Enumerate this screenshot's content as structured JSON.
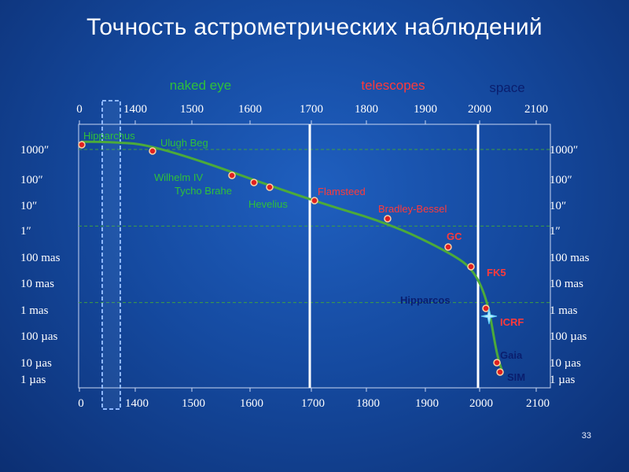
{
  "slide": {
    "title": "Точность астрометрических наблюдений",
    "page_number": "33"
  },
  "colors": {
    "curve": "#4caa3a",
    "dot_fill": "#e02020",
    "dot_stroke": "#ffd0a0",
    "label_green": "#2fc03a",
    "label_red": "#ff3a3a",
    "label_navy": "#0a1e6e",
    "era_green": "#2fc03a",
    "era_red": "#ff3a3a",
    "era_navy": "#0a1e6e"
  },
  "chart_data": {
    "type": "line",
    "title": "Точность астрометрических наблюдений",
    "x_axis": {
      "tick_labels": [
        "0",
        "1400",
        "1500",
        "1600",
        "1700",
        "1800",
        "1900",
        "2000",
        "2100"
      ],
      "break_after": "0",
      "ticks_top": true,
      "ticks_bottom": true
    },
    "y_axis": {
      "scale": "log",
      "unit": "arcsec",
      "tick_labels": [
        "1000″",
        "100″",
        "10″",
        "1″",
        "100 mas",
        "10 mas",
        "1 mas",
        "100 µas",
        "10 µas",
        "1 µas"
      ],
      "tick_values": [
        1000,
        100,
        10,
        1,
        0.1,
        0.01,
        0.001,
        0.0001,
        1e-05,
        1e-06
      ],
      "labels_left": true,
      "labels_right": true
    },
    "eras": [
      {
        "name": "naked eye",
        "color": "#2fc03a"
      },
      {
        "name": "telescopes",
        "color": "#ff3a3a"
      },
      {
        "name": "space",
        "color": "#0a1e6e"
      }
    ],
    "era_boundaries": [
      1700,
      2000
    ],
    "grid": {
      "horizontal": [
        "1000″",
        "1″",
        "1 mas"
      ],
      "style": "dashed"
    },
    "curve": [
      {
        "x": 0,
        "y": 2000
      },
      {
        "x": 1300,
        "y": 2000
      },
      {
        "x": 1437,
        "y": 1500
      },
      {
        "x": 1700,
        "y": 10
      },
      {
        "x": 1838,
        "y": 1.3
      },
      {
        "x": 1950,
        "y": 0.08
      },
      {
        "x": 1990,
        "y": 0.018
      },
      {
        "x": 2015,
        "y": 0.001
      },
      {
        "x": 2030,
        "y": 1e-05
      },
      {
        "x": 2040,
        "y": 2e-06
      }
    ],
    "points": [
      {
        "name": "Hipparchus",
        "x": 0,
        "y": 2000,
        "color": "#2fc03a"
      },
      {
        "name": "Ulugh Beg",
        "x": 1437,
        "y": 1500,
        "color": "#2fc03a"
      },
      {
        "name": "Wilhelm IV",
        "x": 1570,
        "y": 200,
        "color": "#2fc03a"
      },
      {
        "name": "Tycho Brahe",
        "x": 1608,
        "y": 100,
        "color": "#2fc03a"
      },
      {
        "name": "Hevelius",
        "x": 1633,
        "y": 70,
        "color": "#2fc03a"
      },
      {
        "name": "Flamsteed",
        "x": 1708,
        "y": 12,
        "color": "#ff3a3a"
      },
      {
        "name": "Bradley-Bessel",
        "x": 1838,
        "y": 1.3,
        "color": "#ff3a3a"
      },
      {
        "name": "GC",
        "x": 1945,
        "y": 0.1,
        "color": "#ff3a3a"
      },
      {
        "name": "FK5",
        "x": 1990,
        "y": 0.018,
        "color": "#ff3a3a"
      },
      {
        "name": "Hipparcos",
        "x": 2015,
        "y": 0.001,
        "color": "#0a1e6e"
      },
      {
        "name": "ICRF",
        "x": 2020,
        "y": 0.0005,
        "color": "#ff3a3a",
        "marker": "star"
      },
      {
        "name": "Gaia",
        "x": 2030,
        "y": 1e-05,
        "color": "#0a1e6e"
      },
      {
        "name": "SIM",
        "x": 2035,
        "y": 4e-06,
        "color": "#0a1e6e"
      }
    ]
  }
}
